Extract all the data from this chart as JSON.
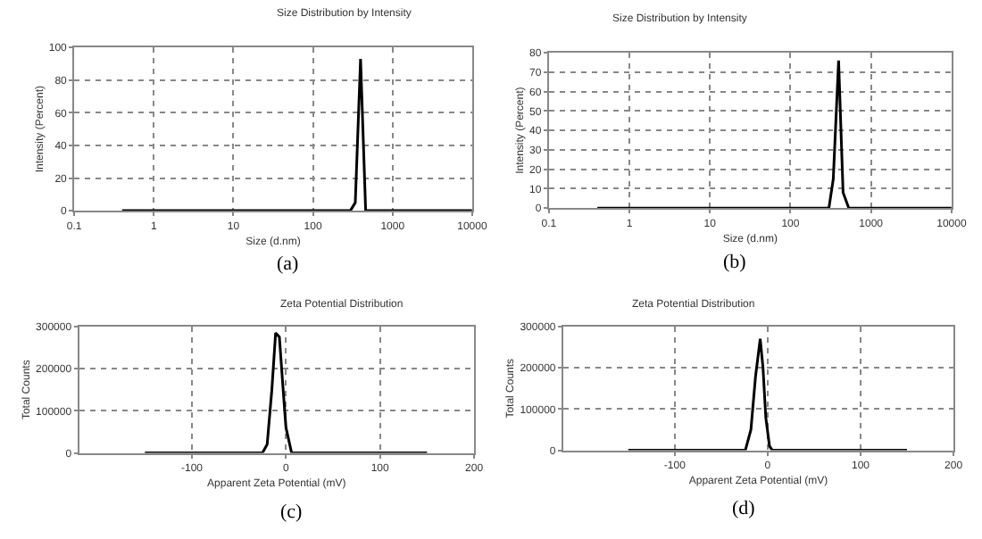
{
  "chart_data": [
    {
      "type": "line",
      "title": "Size Distribution by Intensity",
      "xlabel": "Size (d.nm)",
      "ylabel": "Intensity (Percent)",
      "log": "x",
      "grid": true,
      "line_style": "solid",
      "marker": "none",
      "annotations": [
        "(a)"
      ],
      "xlim": [
        0.1,
        10000
      ],
      "xticks": [
        0.1,
        1,
        10,
        100,
        1000,
        10000
      ],
      "ylim": [
        0,
        100
      ],
      "yticks": [
        0,
        20,
        40,
        60,
        80,
        100
      ],
      "series": [
        {
          "color": "#000000",
          "x": [
            0.4,
            295,
            340,
            396,
            459,
            10000
          ],
          "values": [
            0,
            0,
            5,
            93,
            0,
            0
          ]
        }
      ]
    },
    {
      "type": "line",
      "title": "Size Distribution by Intensity",
      "xlabel": "Size (d.nm)",
      "ylabel": "Intensity (Percent)",
      "log": "x",
      "grid": true,
      "line_style": "solid",
      "marker": "none",
      "annotations": [
        "(b)"
      ],
      "xlim": [
        0.1,
        10000
      ],
      "xticks": [
        0.1,
        1,
        10,
        100,
        1000,
        10000
      ],
      "ylim": [
        0,
        80
      ],
      "yticks": [
        0,
        10,
        20,
        30,
        40,
        50,
        60,
        70,
        80
      ],
      "series": [
        {
          "color": "#000000",
          "x": [
            0.4,
            300,
            340,
            396,
            450,
            530,
            10000
          ],
          "values": [
            0,
            0,
            15,
            76,
            8,
            0,
            0
          ]
        }
      ]
    },
    {
      "type": "line",
      "title": "Zeta Potential Distribution",
      "xlabel": "Apparent Zeta Potential (mV)",
      "ylabel": "Total Counts",
      "grid": true,
      "line_style": "solid",
      "marker": "none",
      "annotations": [
        "(c)"
      ],
      "xlim": [
        -220,
        200
      ],
      "xticks": [
        -100,
        0,
        100,
        200
      ],
      "ylim": [
        0,
        300000
      ],
      "yticks": [
        0,
        100000,
        200000,
        300000
      ],
      "series": [
        {
          "color": "#000000",
          "x": [
            -150,
            -25,
            -20,
            -15,
            -11,
            -7,
            -3,
            0,
            6,
            150
          ],
          "values": [
            0,
            0,
            20000,
            150000,
            285000,
            275000,
            150000,
            60000,
            0,
            0
          ]
        }
      ]
    },
    {
      "type": "line",
      "title": "Zeta Potential Distribution",
      "xlabel": "Apparent Zeta Potential (mV)",
      "ylabel": "Total Counts",
      "grid": true,
      "line_style": "solid",
      "marker": "none",
      "annotations": [
        "(d)"
      ],
      "xlim": [
        -220,
        200
      ],
      "xticks": [
        -100,
        0,
        100,
        200
      ],
      "ylim": [
        0,
        300000
      ],
      "yticks": [
        0,
        100000,
        200000,
        300000
      ],
      "series": [
        {
          "color": "#000000",
          "x": [
            -150,
            -24,
            -18,
            -13,
            -8,
            -5,
            -2,
            2,
            5,
            150
          ],
          "values": [
            0,
            0,
            50000,
            180000,
            270000,
            200000,
            80000,
            10000,
            0,
            0
          ]
        }
      ]
    }
  ]
}
